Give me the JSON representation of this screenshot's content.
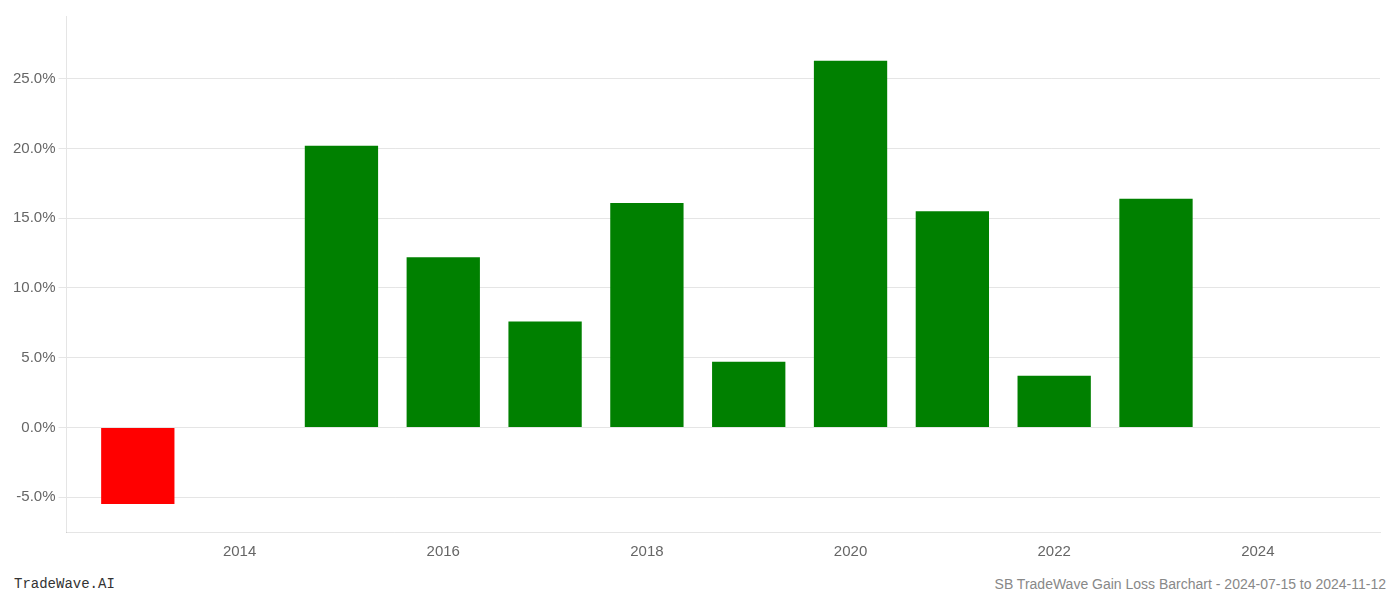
{
  "chart_data": {
    "type": "bar",
    "x": [
      2013,
      2015,
      2016,
      2017,
      2018,
      2019,
      2020,
      2021,
      2022,
      2023
    ],
    "values": [
      -0.055,
      0.202,
      0.122,
      0.076,
      0.161,
      0.047,
      0.263,
      0.155,
      0.037,
      0.164
    ],
    "colors": [
      "#ff0000",
      "#008000",
      "#008000",
      "#008000",
      "#008000",
      "#008000",
      "#008000",
      "#008000",
      "#008000",
      "#008000"
    ],
    "xlim": [
      2012.3,
      2025.2
    ],
    "xticks": [
      2014,
      2016,
      2018,
      2020,
      2022,
      2024
    ],
    "ylim": [
      -0.075,
      0.295
    ],
    "yticks": [
      {
        "value": -0.05,
        "label": "-5.0%"
      },
      {
        "value": 0.0,
        "label": "0.0%"
      },
      {
        "value": 0.05,
        "label": "5.0%"
      },
      {
        "value": 0.1,
        "label": "10.0%"
      },
      {
        "value": 0.15,
        "label": "15.0%"
      },
      {
        "value": 0.2,
        "label": "20.0%"
      },
      {
        "value": 0.25,
        "label": "25.0%"
      }
    ],
    "grid": true,
    "annotations": [
      "TradeWave.AI",
      "SB TradeWave Gain Loss Barchart - 2024-07-15 to 2024-11-12"
    ]
  }
}
